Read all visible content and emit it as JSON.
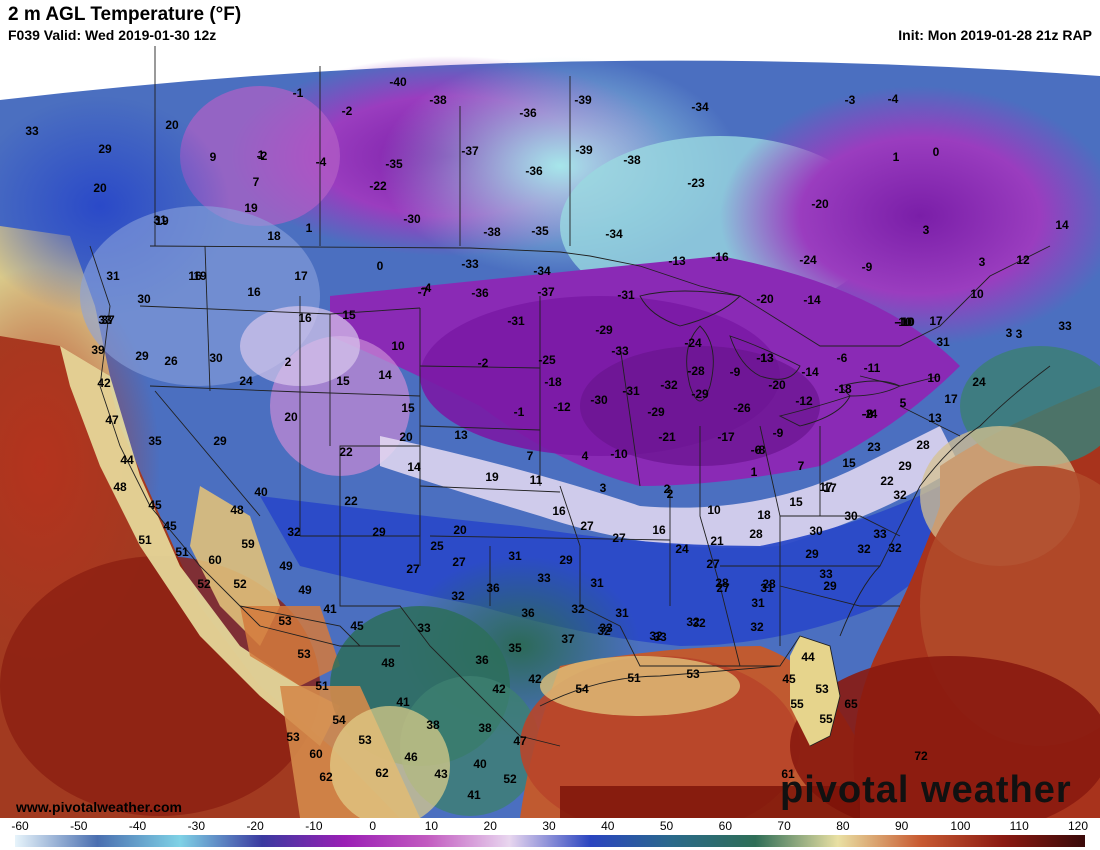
{
  "header": {
    "title": "2 m AGL Temperature (°F)",
    "valid": "F039 Valid: Wed 2019-01-30 12z",
    "init": "Init: Mon 2019-01-28 21z RAP"
  },
  "branding": {
    "website": "www.pivotalweather.com",
    "watermark": "pivotal weather"
  },
  "colorbar": {
    "ticks": [
      "-60",
      "-50",
      "-40",
      "-30",
      "-20",
      "-10",
      "0",
      "10",
      "20",
      "30",
      "40",
      "50",
      "60",
      "70",
      "80",
      "90",
      "100",
      "110",
      "120"
    ],
    "colors": [
      "#e7f4fb",
      "#4a6fb0",
      "#7fd2e6",
      "#3a3aa0",
      "#9a1fb5",
      "#c25ac0",
      "#e8d6ef",
      "#2a45c0",
      "#2a6a8a",
      "#2f6e57",
      "#e9e0a3",
      "#c85b32",
      "#8b1a12",
      "#3a0a0a"
    ]
  },
  "temperatures": [
    {
      "v": "-40"
    },
    {
      "v": "-38"
    },
    {
      "v": "-36"
    },
    {
      "v": "-39"
    },
    {
      "v": "-34"
    },
    {
      "v": "-39"
    },
    {
      "v": "-38"
    },
    {
      "v": "-37"
    },
    {
      "v": "-36"
    },
    {
      "v": "-35"
    },
    {
      "v": "-22"
    },
    {
      "v": "-30"
    },
    {
      "v": "-38"
    },
    {
      "v": "-35"
    },
    {
      "v": "-34"
    },
    {
      "v": "-23"
    },
    {
      "v": "-20"
    },
    {
      "v": "-33"
    },
    {
      "v": "-34"
    },
    {
      "v": "-36"
    },
    {
      "v": "-37"
    },
    {
      "v": "-31"
    },
    {
      "v": "-31"
    },
    {
      "v": "-29"
    },
    {
      "v": "-33"
    },
    {
      "v": "-25"
    },
    {
      "v": "-18"
    },
    {
      "v": "-12"
    },
    {
      "v": "-30"
    },
    {
      "v": "-31"
    },
    {
      "v": "-32"
    },
    {
      "v": "-29"
    },
    {
      "v": "-21"
    },
    {
      "v": "-28"
    },
    {
      "v": "-29"
    },
    {
      "v": "-26"
    },
    {
      "v": "-17"
    },
    {
      "v": "-9"
    },
    {
      "v": "-24"
    },
    {
      "v": "-13"
    },
    {
      "v": "-9"
    },
    {
      "v": "-20"
    },
    {
      "v": "-14"
    },
    {
      "v": "-24"
    },
    {
      "v": "-9"
    },
    {
      "v": "-16"
    },
    {
      "v": "-13"
    },
    {
      "v": "-13"
    },
    {
      "v": "-10"
    },
    {
      "v": "-11"
    },
    {
      "v": "-14"
    },
    {
      "v": "-18"
    },
    {
      "v": "-12"
    },
    {
      "v": "-2"
    },
    {
      "v": "-1"
    },
    {
      "v": "-7"
    },
    {
      "v": "-4"
    },
    {
      "v": "-2"
    },
    {
      "v": "-10"
    },
    {
      "v": "-6"
    },
    {
      "v": "-8"
    },
    {
      "v": "-20"
    },
    {
      "v": "-2"
    },
    {
      "v": "-10"
    },
    {
      "v": "-6"
    },
    {
      "v": "-3"
    },
    {
      "v": "-4"
    },
    {
      "v": "-1"
    },
    {
      "v": "-2"
    },
    {
      "v": "-4"
    },
    {
      "v": "-9"
    },
    {
      "v": "-8"
    },
    {
      "v": "-10"
    },
    {
      "v": "1"
    },
    {
      "v": "0"
    },
    {
      "v": "3"
    },
    {
      "v": "3"
    },
    {
      "v": "12"
    },
    {
      "v": "10"
    },
    {
      "v": "14"
    },
    {
      "v": "17"
    },
    {
      "v": "3"
    },
    {
      "v": "33"
    },
    {
      "v": "31"
    },
    {
      "v": "10"
    },
    {
      "v": "5"
    },
    {
      "v": "17"
    },
    {
      "v": "24"
    },
    {
      "v": "3"
    },
    {
      "v": "33"
    },
    {
      "v": "20"
    },
    {
      "v": "9"
    },
    {
      "v": "18"
    },
    {
      "v": "1"
    },
    {
      "v": "7"
    },
    {
      "v": "19"
    },
    {
      "v": "1"
    },
    {
      "v": "0"
    },
    {
      "v": "-4"
    },
    {
      "v": "29"
    },
    {
      "v": "20"
    },
    {
      "v": "19"
    },
    {
      "v": "31"
    },
    {
      "v": "16"
    },
    {
      "v": "19"
    },
    {
      "v": "30"
    },
    {
      "v": "31"
    },
    {
      "v": "29"
    },
    {
      "v": "33"
    },
    {
      "v": "37"
    },
    {
      "v": "39"
    },
    {
      "v": "42"
    },
    {
      "v": "47"
    },
    {
      "v": "44"
    },
    {
      "v": "48"
    },
    {
      "v": "45"
    },
    {
      "v": "45"
    },
    {
      "v": "51"
    },
    {
      "v": "51"
    },
    {
      "v": "60"
    },
    {
      "v": "52"
    },
    {
      "v": "52"
    },
    {
      "v": "59"
    },
    {
      "v": "49"
    },
    {
      "v": "49"
    },
    {
      "v": "41"
    },
    {
      "v": "53"
    },
    {
      "v": "53"
    },
    {
      "v": "51"
    },
    {
      "v": "54"
    },
    {
      "v": "53"
    },
    {
      "v": "60"
    },
    {
      "v": "62"
    },
    {
      "v": "53"
    },
    {
      "v": "62"
    },
    {
      "v": "26"
    },
    {
      "v": "30"
    },
    {
      "v": "24"
    },
    {
      "v": "2"
    },
    {
      "v": "20"
    },
    {
      "v": "35"
    },
    {
      "v": "29"
    },
    {
      "v": "40"
    },
    {
      "v": "48"
    },
    {
      "v": "32"
    },
    {
      "v": "17"
    },
    {
      "v": "16"
    },
    {
      "v": "15"
    },
    {
      "v": "16"
    },
    {
      "v": "10"
    },
    {
      "v": "15"
    },
    {
      "v": "14"
    },
    {
      "v": "15"
    },
    {
      "v": "20"
    },
    {
      "v": "22"
    },
    {
      "v": "14"
    },
    {
      "v": "22"
    },
    {
      "v": "29"
    },
    {
      "v": "27"
    },
    {
      "v": "25"
    },
    {
      "v": "20"
    },
    {
      "v": "27"
    },
    {
      "v": "13"
    },
    {
      "v": "19"
    },
    {
      "v": "11"
    },
    {
      "v": "7"
    },
    {
      "v": "16"
    },
    {
      "v": "27"
    },
    {
      "v": "27"
    },
    {
      "v": "31"
    },
    {
      "v": "29"
    },
    {
      "v": "31"
    },
    {
      "v": "36"
    },
    {
      "v": "33"
    },
    {
      "v": "32"
    },
    {
      "v": "36"
    },
    {
      "v": "32"
    },
    {
      "v": "33"
    },
    {
      "v": "36"
    },
    {
      "v": "35"
    },
    {
      "v": "37"
    },
    {
      "v": "32"
    },
    {
      "v": "45"
    },
    {
      "v": "48"
    },
    {
      "v": "41"
    },
    {
      "v": "42"
    },
    {
      "v": "38"
    },
    {
      "v": "42"
    },
    {
      "v": "38"
    },
    {
      "v": "46"
    },
    {
      "v": "43"
    },
    {
      "v": "40"
    },
    {
      "v": "41"
    },
    {
      "v": "47"
    },
    {
      "v": "52"
    },
    {
      "v": "3"
    },
    {
      "v": "2"
    },
    {
      "v": "4"
    },
    {
      "v": "1"
    },
    {
      "v": "7"
    },
    {
      "v": "10"
    },
    {
      "v": "18"
    },
    {
      "v": "15"
    },
    {
      "v": "17"
    },
    {
      "v": "16"
    },
    {
      "v": "24"
    },
    {
      "v": "21"
    },
    {
      "v": "27"
    },
    {
      "v": "28"
    },
    {
      "v": "27"
    },
    {
      "v": "28"
    },
    {
      "v": "31"
    },
    {
      "v": "31"
    },
    {
      "v": "32"
    },
    {
      "v": "32"
    },
    {
      "v": "31"
    },
    {
      "v": "33"
    },
    {
      "v": "33"
    },
    {
      "v": "32"
    },
    {
      "v": "32"
    },
    {
      "v": "30"
    },
    {
      "v": "29"
    },
    {
      "v": "30"
    },
    {
      "v": "32"
    },
    {
      "v": "32"
    },
    {
      "v": "33"
    },
    {
      "v": "29"
    },
    {
      "v": "22"
    },
    {
      "v": "23"
    },
    {
      "v": "28"
    },
    {
      "v": "29"
    },
    {
      "v": "33"
    },
    {
      "v": "32"
    },
    {
      "v": "44"
    },
    {
      "v": "45"
    },
    {
      "v": "53"
    },
    {
      "v": "55"
    },
    {
      "v": "55"
    },
    {
      "v": "54"
    },
    {
      "v": "51"
    },
    {
      "v": "53"
    },
    {
      "v": "65"
    },
    {
      "v": "72"
    },
    {
      "v": "61"
    },
    {
      "v": "28"
    },
    {
      "v": "15"
    },
    {
      "v": "17"
    },
    {
      "v": "13"
    },
    {
      "v": "2"
    }
  ]
}
